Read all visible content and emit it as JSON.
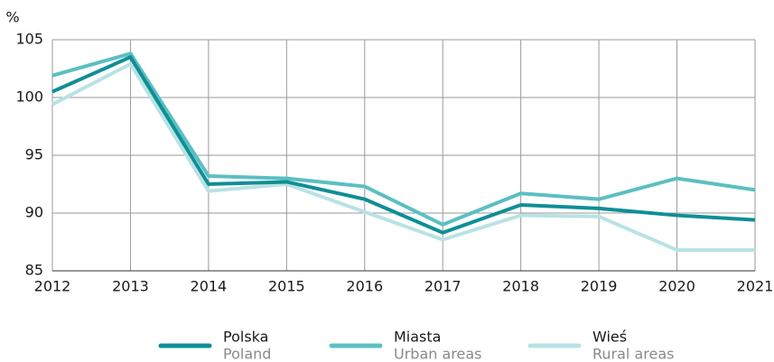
{
  "chart_data": {
    "type": "line",
    "y_label": "%",
    "x": [
      2012,
      2013,
      2014,
      2015,
      2016,
      2017,
      2018,
      2019,
      2020,
      2021
    ],
    "series": [
      {
        "name": "Polska",
        "name_en": "Poland",
        "color": "#0e8f96",
        "values": [
          100.5,
          103.5,
          92.5,
          92.7,
          91.2,
          88.3,
          90.7,
          90.4,
          89.8,
          89.4
        ]
      },
      {
        "name": "Miasta",
        "name_en": "Urban areas",
        "color": "#5bbfc2",
        "values": [
          101.9,
          103.8,
          93.2,
          93.0,
          92.3,
          89.0,
          91.7,
          91.2,
          93.0,
          92.0
        ]
      },
      {
        "name": "Wieś",
        "name_en": "Rural areas",
        "color": "#b9e2e4",
        "values": [
          99.4,
          102.9,
          91.9,
          92.5,
          90.1,
          87.7,
          89.8,
          89.7,
          86.8,
          86.8
        ]
      }
    ],
    "xlim": [
      2012,
      2021
    ],
    "xticks": [
      2012,
      2013,
      2014,
      2015,
      2016,
      2017,
      2018,
      2019,
      2020,
      2021
    ],
    "ylim": [
      85,
      105
    ],
    "yticks": [
      85,
      90,
      95,
      100,
      105
    ],
    "grid": true,
    "legend": "bottom"
  }
}
